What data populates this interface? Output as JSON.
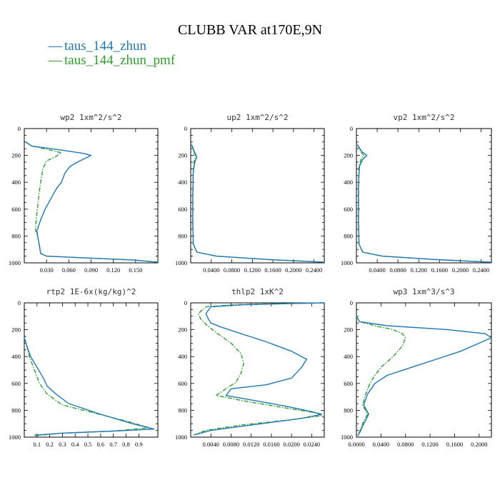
{
  "figure": {
    "title": "CLUBB VAR at170E,9N",
    "legend": [
      {
        "label": "taus_144_zhun",
        "color": "#1f77b4",
        "style": "solid",
        "marker": "—"
      },
      {
        "label": "taus_144_zhun_pmf",
        "color": "#2ca02c",
        "style": "dashdot",
        "marker": "—"
      }
    ]
  },
  "chart_data": [
    {
      "type": "line",
      "title": "wp2  1xm^2/s^2",
      "xlim": [
        0.0,
        0.18
      ],
      "ylim": [
        1000,
        0
      ],
      "yticks": [
        0,
        200,
        400,
        600,
        800,
        1000
      ],
      "xticks": [
        0.03,
        0.06,
        0.09,
        0.12,
        0.15
      ],
      "xticklabels": [
        "0.030",
        "0.060",
        "0.090",
        "0.120",
        "0.150"
      ],
      "series": [
        {
          "name": "taus_144_zhun",
          "points": [
            [
              0.002,
              100
            ],
            [
              0.01,
              130
            ],
            [
              0.05,
              160
            ],
            [
              0.08,
              185
            ],
            [
              0.09,
              200
            ],
            [
              0.075,
              240
            ],
            [
              0.062,
              280
            ],
            [
              0.055,
              330
            ],
            [
              0.05,
              400
            ],
            [
              0.043,
              450
            ],
            [
              0.035,
              530
            ],
            [
              0.028,
              600
            ],
            [
              0.022,
              680
            ],
            [
              0.017,
              760
            ],
            [
              0.018,
              800
            ],
            [
              0.02,
              860
            ],
            [
              0.022,
              930
            ],
            [
              0.03,
              950
            ],
            [
              0.09,
              965
            ],
            [
              0.15,
              980
            ],
            [
              0.18,
              995
            ]
          ]
        },
        {
          "name": "taus_144_zhun_pmf",
          "points": [
            [
              0.002,
              100
            ],
            [
              0.01,
              130
            ],
            [
              0.035,
              160
            ],
            [
              0.05,
              180
            ],
            [
              0.042,
              210
            ],
            [
              0.03,
              240
            ],
            [
              0.025,
              300
            ],
            [
              0.022,
              400
            ],
            [
              0.02,
              480
            ],
            [
              0.018,
              580
            ],
            [
              0.016,
              680
            ],
            [
              0.015,
              760
            ],
            [
              0.018,
              800
            ],
            [
              0.02,
              860
            ],
            [
              0.022,
              930
            ],
            [
              0.03,
              950
            ],
            [
              0.09,
              965
            ],
            [
              0.15,
              980
            ],
            [
              0.18,
              995
            ]
          ]
        }
      ]
    },
    {
      "type": "line",
      "title": "up2  1xm^2/s^2",
      "xlim": [
        0.0,
        0.26
      ],
      "ylim": [
        1000,
        0
      ],
      "yticks": [
        0,
        200,
        400,
        600,
        800,
        1000
      ],
      "xticks": [
        0.04,
        0.08,
        0.12,
        0.16,
        0.2,
        0.24
      ],
      "xticklabels": [
        "0.0400",
        "0.0800",
        "0.1200",
        "0.1600",
        "0.2000",
        "0.2400"
      ],
      "series": [
        {
          "name": "taus_144_zhun",
          "points": [
            [
              0.002,
              120
            ],
            [
              0.008,
              180
            ],
            [
              0.012,
              210
            ],
            [
              0.008,
              250
            ],
            [
              0.005,
              320
            ],
            [
              0.004,
              500
            ],
            [
              0.004,
              700
            ],
            [
              0.005,
              860
            ],
            [
              0.012,
              920
            ],
            [
              0.05,
              950
            ],
            [
              0.15,
              975
            ],
            [
              0.26,
              995
            ]
          ]
        },
        {
          "name": "taus_144_zhun_pmf",
          "points": [
            [
              0.002,
              120
            ],
            [
              0.006,
              180
            ],
            [
              0.01,
              200
            ],
            [
              0.007,
              240
            ],
            [
              0.005,
              300
            ],
            [
              0.004,
              500
            ],
            [
              0.004,
              700
            ],
            [
              0.005,
              860
            ],
            [
              0.012,
              920
            ],
            [
              0.05,
              950
            ],
            [
              0.15,
              975
            ],
            [
              0.26,
              995
            ]
          ]
        }
      ]
    },
    {
      "type": "line",
      "title": "vp2  1xm^2/s^2",
      "xlim": [
        0.0,
        0.26
      ],
      "ylim": [
        1000,
        0
      ],
      "yticks": [
        0,
        200,
        400,
        600,
        800,
        1000
      ],
      "xticks": [
        0.04,
        0.08,
        0.12,
        0.16,
        0.2,
        0.24
      ],
      "xticklabels": [
        "0.0400",
        "0.0800",
        "0.1200",
        "0.1600",
        "0.2000",
        "0.2400"
      ],
      "series": [
        {
          "name": "taus_144_zhun",
          "points": [
            [
              0.002,
              120
            ],
            [
              0.01,
              170
            ],
            [
              0.02,
              200
            ],
            [
              0.012,
              230
            ],
            [
              0.006,
              280
            ],
            [
              0.004,
              400
            ],
            [
              0.004,
              700
            ],
            [
              0.005,
              860
            ],
            [
              0.012,
              920
            ],
            [
              0.05,
              950
            ],
            [
              0.15,
              975
            ],
            [
              0.26,
              995
            ]
          ]
        },
        {
          "name": "taus_144_zhun_pmf",
          "points": [
            [
              0.002,
              120
            ],
            [
              0.008,
              170
            ],
            [
              0.014,
              200
            ],
            [
              0.009,
              230
            ],
            [
              0.005,
              280
            ],
            [
              0.004,
              400
            ],
            [
              0.004,
              700
            ],
            [
              0.005,
              860
            ],
            [
              0.012,
              920
            ],
            [
              0.05,
              950
            ],
            [
              0.15,
              975
            ],
            [
              0.26,
              995
            ]
          ]
        }
      ]
    },
    {
      "type": "line",
      "title": "rtp2  1E-6x(kg/kg)^2",
      "xlim": [
        0.0,
        1.05
      ],
      "ylim": [
        1000,
        0
      ],
      "yticks": [
        0,
        200,
        400,
        600,
        800,
        1000
      ],
      "xticks": [
        0.1,
        0.2,
        0.3,
        0.4,
        0.5,
        0.6,
        0.7,
        0.8,
        0.9
      ],
      "xticklabels": [
        "0.1",
        "0.2",
        "0.3",
        "0.4",
        "0.5",
        "0.6",
        "0.7",
        "0.8",
        "0.9"
      ],
      "series": [
        {
          "name": "taus_144_zhun",
          "points": [
            [
              0.0,
              260
            ],
            [
              0.02,
              320
            ],
            [
              0.05,
              400
            ],
            [
              0.1,
              480
            ],
            [
              0.15,
              560
            ],
            [
              0.18,
              620
            ],
            [
              0.25,
              680
            ],
            [
              0.35,
              750
            ],
            [
              0.6,
              830
            ],
            [
              0.85,
              900
            ],
            [
              1.02,
              940
            ],
            [
              0.7,
              955
            ],
            [
              0.3,
              970
            ],
            [
              0.08,
              985
            ]
          ]
        },
        {
          "name": "taus_144_zhun_pmf",
          "points": [
            [
              0.0,
              260
            ],
            [
              0.02,
              320
            ],
            [
              0.04,
              400
            ],
            [
              0.08,
              500
            ],
            [
              0.12,
              600
            ],
            [
              0.18,
              680
            ],
            [
              0.3,
              760
            ],
            [
              0.55,
              820
            ],
            [
              0.8,
              880
            ],
            [
              0.98,
              930
            ],
            [
              0.7,
              955
            ],
            [
              0.3,
              970
            ],
            [
              0.08,
              990
            ]
          ]
        }
      ]
    },
    {
      "type": "line",
      "title": "thlp2  1xK^2",
      "xlim": [
        0.0,
        0.0265
      ],
      "ylim": [
        1000,
        0
      ],
      "yticks": [
        0,
        200,
        400,
        600,
        800,
        1000
      ],
      "xticks": [
        0.004,
        0.008,
        0.012,
        0.016,
        0.02,
        0.024
      ],
      "xticklabels": [
        "0.0040",
        "0.0080",
        "0.0120",
        "0.0160",
        "0.0200",
        "0.0240"
      ],
      "series": [
        {
          "name": "taus_144_zhun",
          "points": [
            [
              0.0265,
              0
            ],
            [
              0.02,
              5
            ],
            [
              0.01,
              15
            ],
            [
              0.004,
              30
            ],
            [
              0.003,
              80
            ],
            [
              0.0035,
              120
            ],
            [
              0.004,
              150
            ],
            [
              0.006,
              180
            ],
            [
              0.01,
              230
            ],
            [
              0.015,
              290
            ],
            [
              0.02,
              360
            ],
            [
              0.023,
              420
            ],
            [
              0.022,
              480
            ],
            [
              0.02,
              560
            ],
            [
              0.015,
              610
            ],
            [
              0.008,
              640
            ],
            [
              0.007,
              690
            ],
            [
              0.013,
              730
            ],
            [
              0.019,
              770
            ],
            [
              0.024,
              810
            ],
            [
              0.026,
              830
            ],
            [
              0.022,
              860
            ],
            [
              0.012,
              910
            ],
            [
              0.004,
              950
            ],
            [
              0.001,
              980
            ]
          ]
        },
        {
          "name": "taus_144_zhun_pmf",
          "points": [
            [
              0.0265,
              0
            ],
            [
              0.018,
              5
            ],
            [
              0.008,
              15
            ],
            [
              0.003,
              30
            ],
            [
              0.0015,
              80
            ],
            [
              0.002,
              120
            ],
            [
              0.003,
              160
            ],
            [
              0.005,
              220
            ],
            [
              0.008,
              300
            ],
            [
              0.01,
              380
            ],
            [
              0.0105,
              450
            ],
            [
              0.01,
              520
            ],
            [
              0.009,
              590
            ],
            [
              0.007,
              640
            ],
            [
              0.005,
              690
            ],
            [
              0.012,
              740
            ],
            [
              0.02,
              790
            ],
            [
              0.025,
              820
            ],
            [
              0.026,
              840
            ],
            [
              0.02,
              870
            ],
            [
              0.01,
              910
            ],
            [
              0.003,
              950
            ],
            [
              0.0005,
              985
            ]
          ]
        }
      ]
    },
    {
      "type": "line",
      "title": "wp3  1xm^3/s^3",
      "xlim": [
        0.0,
        0.22
      ],
      "ylim": [
        1000,
        0
      ],
      "yticks": [
        0,
        200,
        400,
        600,
        800,
        1000
      ],
      "xticks": [
        0.0,
        0.04,
        0.08,
        0.12,
        0.16,
        0.2
      ],
      "xticklabels": [
        "0.0000",
        "0.0400",
        "0.0800",
        "0.1200",
        "0.1600",
        "0.2000"
      ],
      "series": [
        {
          "name": "taus_144_zhun",
          "points": [
            [
              0.0,
              100
            ],
            [
              0.005,
              140
            ],
            [
              0.05,
              170
            ],
            [
              0.15,
              200
            ],
            [
              0.21,
              230
            ],
            [
              0.22,
              260
            ],
            [
              0.2,
              300
            ],
            [
              0.17,
              360
            ],
            [
              0.13,
              420
            ],
            [
              0.09,
              480
            ],
            [
              0.05,
              540
            ],
            [
              0.03,
              600
            ],
            [
              0.018,
              680
            ],
            [
              0.012,
              760
            ],
            [
              0.02,
              830
            ],
            [
              0.012,
              900
            ],
            [
              0.006,
              960
            ],
            [
              0.002,
              990
            ]
          ]
        },
        {
          "name": "taus_144_zhun_pmf",
          "points": [
            [
              0.0,
              100
            ],
            [
              0.005,
              140
            ],
            [
              0.03,
              170
            ],
            [
              0.06,
              200
            ],
            [
              0.075,
              230
            ],
            [
              0.08,
              260
            ],
            [
              0.075,
              320
            ],
            [
              0.06,
              400
            ],
            [
              0.04,
              480
            ],
            [
              0.03,
              540
            ],
            [
              0.022,
              600
            ],
            [
              0.015,
              680
            ],
            [
              0.01,
              760
            ],
            [
              0.018,
              830
            ],
            [
              0.01,
              900
            ],
            [
              0.005,
              960
            ],
            [
              0.002,
              990
            ]
          ]
        }
      ]
    }
  ]
}
